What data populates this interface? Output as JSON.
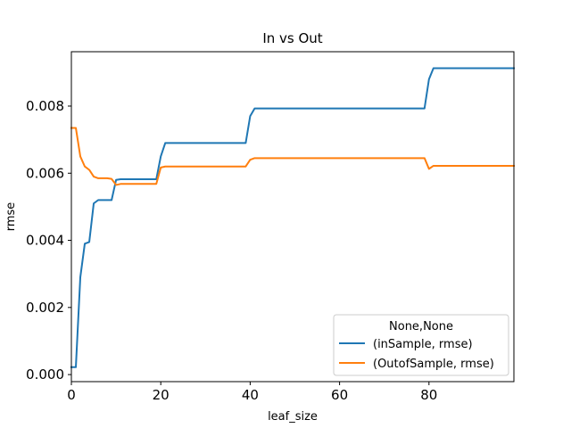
{
  "chart_data": {
    "type": "line",
    "title": "In vs Out",
    "xlabel": "leaf_size",
    "ylabel": "rmse",
    "xlim": [
      0,
      99
    ],
    "ylim": [
      -0.00021,
      0.00962
    ],
    "xticks": [
      0,
      20,
      40,
      60,
      80
    ],
    "xtick_labels": [
      "0",
      "20",
      "40",
      "60",
      "80"
    ],
    "yticks": [
      0.0,
      0.002,
      0.004,
      0.006,
      0.008
    ],
    "ytick_labels": [
      "0.000",
      "0.002",
      "0.004",
      "0.006",
      "0.008"
    ],
    "grid": false,
    "legend": {
      "title": "None,None",
      "placement": "lower-right"
    },
    "series": [
      {
        "name": "(inSample, rmse)",
        "color": "#1f77b4",
        "points": [
          [
            0,
            0.00022
          ],
          [
            1,
            0.00022
          ],
          [
            2,
            0.0029
          ],
          [
            3,
            0.0039
          ],
          [
            4,
            0.00395
          ],
          [
            5,
            0.0051
          ],
          [
            6,
            0.0052
          ],
          [
            7,
            0.0052
          ],
          [
            8,
            0.0052
          ],
          [
            9,
            0.0052
          ],
          [
            10,
            0.0058
          ],
          [
            11,
            0.00582
          ],
          [
            19,
            0.00582
          ],
          [
            20,
            0.0065
          ],
          [
            21,
            0.0069
          ],
          [
            39,
            0.0069
          ],
          [
            40,
            0.0077
          ],
          [
            41,
            0.00793
          ],
          [
            79,
            0.00793
          ],
          [
            80,
            0.0088
          ],
          [
            81,
            0.00913
          ],
          [
            99,
            0.00913
          ]
        ]
      },
      {
        "name": "(OutofSample, rmse)",
        "color": "#ff7f0e",
        "points": [
          [
            0,
            0.00735
          ],
          [
            1,
            0.00735
          ],
          [
            2,
            0.0065
          ],
          [
            3,
            0.0062
          ],
          [
            4,
            0.0061
          ],
          [
            5,
            0.0059
          ],
          [
            6,
            0.00585
          ],
          [
            7,
            0.00585
          ],
          [
            8,
            0.00585
          ],
          [
            9,
            0.00583
          ],
          [
            10,
            0.00565
          ],
          [
            11,
            0.00568
          ],
          [
            19,
            0.00568
          ],
          [
            20,
            0.00617
          ],
          [
            21,
            0.0062
          ],
          [
            39,
            0.0062
          ],
          [
            40,
            0.0064
          ],
          [
            41,
            0.00645
          ],
          [
            79,
            0.00645
          ],
          [
            80,
            0.00613
          ],
          [
            81,
            0.00622
          ],
          [
            99,
            0.00622
          ]
        ]
      }
    ]
  }
}
